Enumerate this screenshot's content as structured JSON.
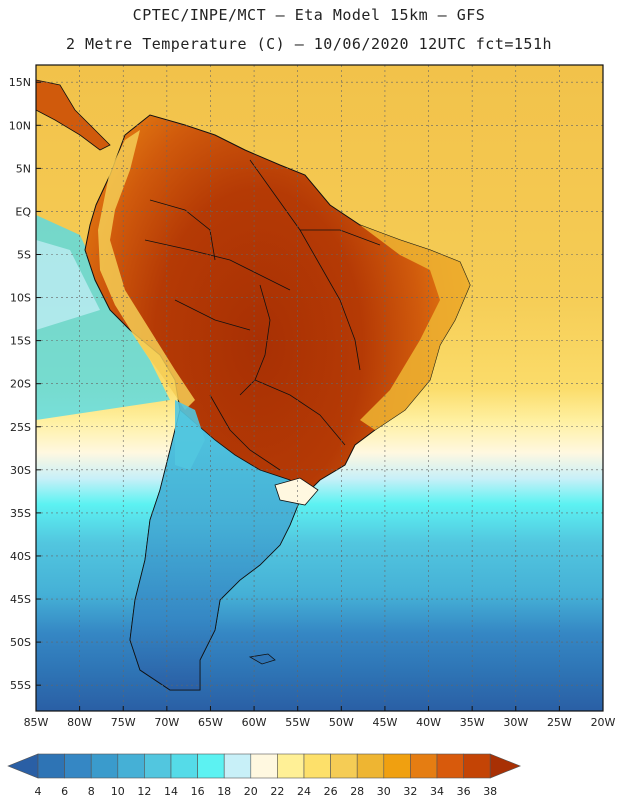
{
  "header": {
    "line1": "CPTEC/INPE/MCT –  Eta Model 15km – GFS",
    "line2": "2 Metre Temperature (C) – 10/06/2020 12UTC fct=151h"
  },
  "map": {
    "lon_range": [
      -85,
      -20
    ],
    "lat_range": [
      -58,
      17
    ],
    "lat_labels": [
      "15N",
      "10N",
      "5N",
      "EQ",
      "5S",
      "10S",
      "15S",
      "20S",
      "25S",
      "30S",
      "35S",
      "40S",
      "45S",
      "50S",
      "55S"
    ],
    "lat_values": [
      15,
      10,
      5,
      0,
      -5,
      -10,
      -15,
      -20,
      -25,
      -30,
      -35,
      -40,
      -45,
      -50,
      -55
    ],
    "lon_labels": [
      "85W",
      "80W",
      "75W",
      "70W",
      "65W",
      "60W",
      "55W",
      "50W",
      "45W",
      "40W",
      "35W",
      "30W",
      "25W",
      "20W"
    ],
    "lon_values": [
      -85,
      -80,
      -75,
      -70,
      -65,
      -60,
      -55,
      -50,
      -45,
      -40,
      -35,
      -30,
      -25,
      -20
    ]
  },
  "colorbar": {
    "labels": [
      "4",
      "6",
      "8",
      "10",
      "12",
      "14",
      "16",
      "18",
      "20",
      "22",
      "24",
      "26",
      "28",
      "30",
      "32",
      "34",
      "36",
      "38"
    ],
    "colors": [
      "#2a5fa5",
      "#2e74b5",
      "#3587c4",
      "#3a9bcc",
      "#45b0d6",
      "#52c6df",
      "#55dbe8",
      "#5cf2f2",
      "#c8f0f8",
      "#fff8e0",
      "#fff096",
      "#fde06a",
      "#f5cc55",
      "#eeb532",
      "#f0a010",
      "#e57d12",
      "#d85a0c",
      "#c44405",
      "#a83004"
    ]
  }
}
